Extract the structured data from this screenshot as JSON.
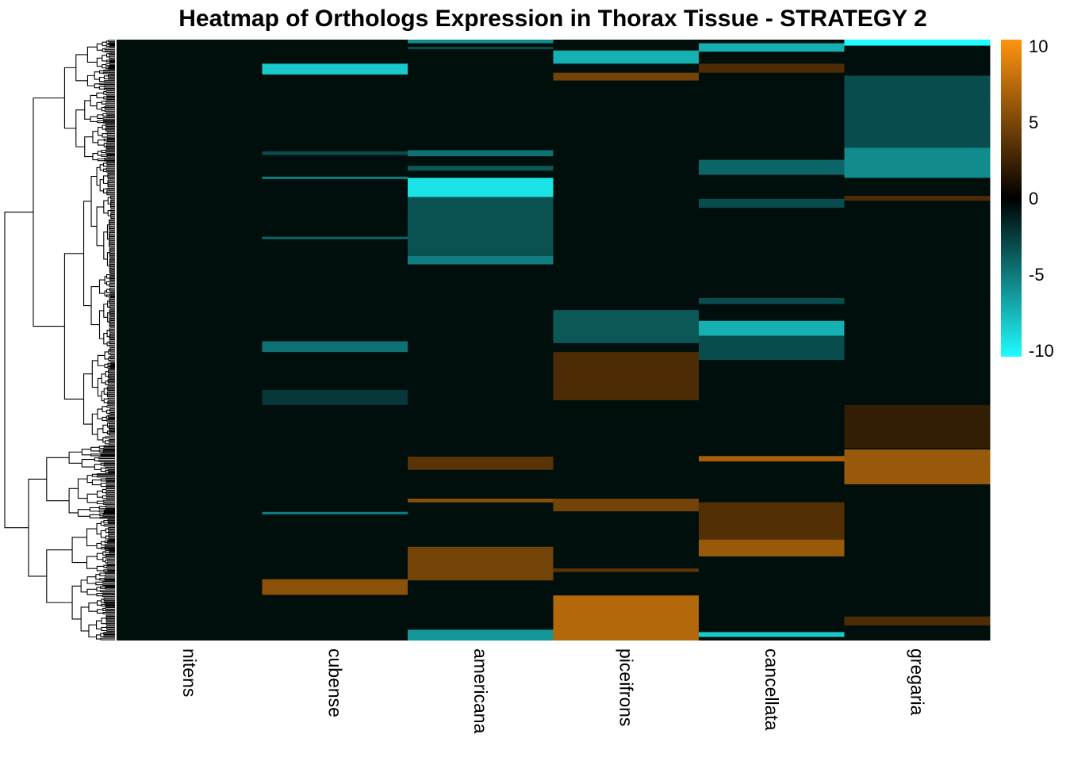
{
  "chart_data": {
    "type": "heatmap",
    "title": "Heatmap of Orthologs Expression in Thorax Tissue - STRATEGY 2",
    "columns": [
      "nitens",
      "cubense",
      "americana",
      "piceifrons",
      "cancellata",
      "gregaria"
    ],
    "row_dendrogram": true,
    "color_scale": {
      "min": -10,
      "max": 10,
      "low_color": "#1ffcff",
      "mid_color": "#000000",
      "high_color": "#ff9410",
      "ticks": [
        10,
        5,
        0,
        -5,
        -10
      ],
      "tick_labels": [
        "10",
        "5",
        "0",
        "-5",
        "-10"
      ]
    },
    "row_fraction_unit": "fraction of rows from top (0..1)",
    "row_blocks": {
      "nitens": [],
      "cubense": [
        {
          "from": 0.04,
          "to": 0.058,
          "value": -8.0
        },
        {
          "from": 0.186,
          "to": 0.192,
          "value": -3.0
        },
        {
          "from": 0.228,
          "to": 0.232,
          "value": -5.0
        },
        {
          "from": 0.328,
          "to": 0.332,
          "value": -4.0
        },
        {
          "from": 0.502,
          "to": 0.52,
          "value": -4.5
        },
        {
          "from": 0.583,
          "to": 0.608,
          "value": -2.2
        },
        {
          "from": 0.786,
          "to": 0.79,
          "value": -5.0
        },
        {
          "from": 0.898,
          "to": 0.924,
          "value": 5.5
        }
      ],
      "americana": [
        {
          "from": 0.0,
          "to": 0.006,
          "value": -5.5
        },
        {
          "from": 0.012,
          "to": 0.016,
          "value": -3.0
        },
        {
          "from": 0.184,
          "to": 0.194,
          "value": -4.5
        },
        {
          "from": 0.21,
          "to": 0.218,
          "value": -3.5
        },
        {
          "from": 0.23,
          "to": 0.262,
          "value": -9.0
        },
        {
          "from": 0.262,
          "to": 0.36,
          "value": -3.2
        },
        {
          "from": 0.36,
          "to": 0.374,
          "value": -5.0
        },
        {
          "from": 0.694,
          "to": 0.716,
          "value": 3.5
        },
        {
          "from": 0.764,
          "to": 0.77,
          "value": 5.5
        },
        {
          "from": 0.844,
          "to": 0.9,
          "value": 4.5
        },
        {
          "from": 0.982,
          "to": 1.0,
          "value": -6.0
        }
      ],
      "piceifrons": [
        {
          "from": 0.018,
          "to": 0.04,
          "value": -7.0
        },
        {
          "from": 0.055,
          "to": 0.068,
          "value": 4.5
        },
        {
          "from": 0.45,
          "to": 0.505,
          "value": -3.5
        },
        {
          "from": 0.52,
          "to": 0.6,
          "value": 3.0
        },
        {
          "from": 0.764,
          "to": 0.785,
          "value": 4.5
        },
        {
          "from": 0.88,
          "to": 0.886,
          "value": 3.5
        },
        {
          "from": 0.925,
          "to": 1.0,
          "value": 7.0
        }
      ],
      "cancellata": [
        {
          "from": 0.006,
          "to": 0.02,
          "value": -7.0
        },
        {
          "from": 0.04,
          "to": 0.055,
          "value": 3.0
        },
        {
          "from": 0.2,
          "to": 0.225,
          "value": -4.0
        },
        {
          "from": 0.265,
          "to": 0.28,
          "value": -3.0
        },
        {
          "from": 0.43,
          "to": 0.44,
          "value": -3.0
        },
        {
          "from": 0.468,
          "to": 0.493,
          "value": -7.0
        },
        {
          "from": 0.493,
          "to": 0.533,
          "value": -3.0
        },
        {
          "from": 0.693,
          "to": 0.702,
          "value": 6.5
        },
        {
          "from": 0.77,
          "to": 0.832,
          "value": 3.2
        },
        {
          "from": 0.832,
          "to": 0.86,
          "value": 6.0
        },
        {
          "from": 0.986,
          "to": 0.994,
          "value": -8.0
        }
      ],
      "gregaria": [
        {
          "from": 0.0,
          "to": 0.01,
          "value": -10.0
        },
        {
          "from": 0.06,
          "to": 0.18,
          "value": -3.0
        },
        {
          "from": 0.18,
          "to": 0.23,
          "value": -5.5
        },
        {
          "from": 0.26,
          "to": 0.268,
          "value": 3.0
        },
        {
          "from": 0.608,
          "to": 0.68,
          "value": 2.0
        },
        {
          "from": 0.682,
          "to": 0.74,
          "value": 6.0
        },
        {
          "from": 0.96,
          "to": 0.975,
          "value": 3.0
        }
      ]
    }
  }
}
